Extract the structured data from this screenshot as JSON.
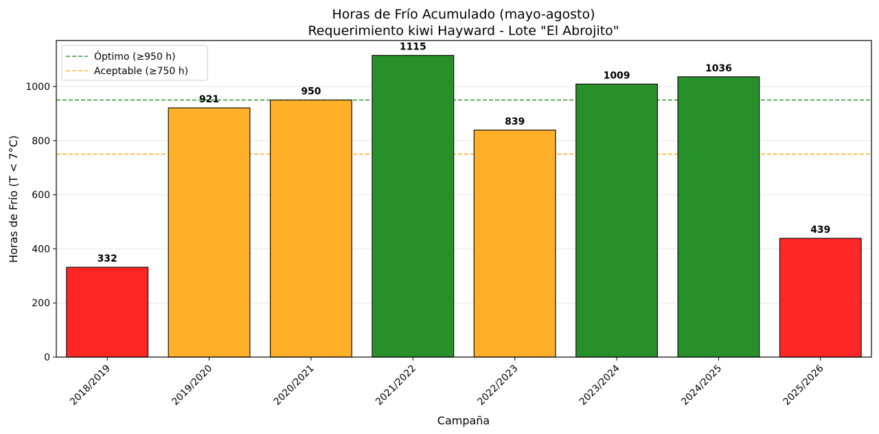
{
  "chart_data": {
    "type": "bar",
    "title": "Horas de Frío Acumulado (mayo-agosto)",
    "subtitle": "Requerimiento kiwi Hayward - Lote \"El Abrojito\"",
    "xlabel": "Campaña",
    "ylabel": "Horas de Frío (T < 7°C)",
    "categories": [
      "2018/2019",
      "2019/2020",
      "2020/2021",
      "2021/2022",
      "2022/2023",
      "2023/2024",
      "2024/2025",
      "2025/2026"
    ],
    "values": [
      332,
      921,
      950,
      1115,
      839,
      1009,
      1036,
      439
    ],
    "value_labels": [
      "332",
      "921",
      "950",
      "1115",
      "839",
      "1009",
      "1036",
      "439"
    ],
    "bar_colors": [
      "#ff2626",
      "#ffb028",
      "#ffb028",
      "#28902a",
      "#ffb028",
      "#28902a",
      "#28902a",
      "#ff2626"
    ],
    "ylim": [
      0,
      1170
    ],
    "yticks": [
      0,
      200,
      400,
      600,
      800,
      1000
    ],
    "ytick_labels": [
      "0",
      "200",
      "400",
      "600",
      "800",
      "1000"
    ],
    "grid": true,
    "legend_position": "top-left",
    "reference_lines": [
      {
        "label": "Óptimo (≥950 h)",
        "value": 950,
        "color": "#3a9a3a"
      },
      {
        "label": "Aceptable (≥750 h)",
        "value": 750,
        "color": "#ffb028"
      }
    ]
  }
}
